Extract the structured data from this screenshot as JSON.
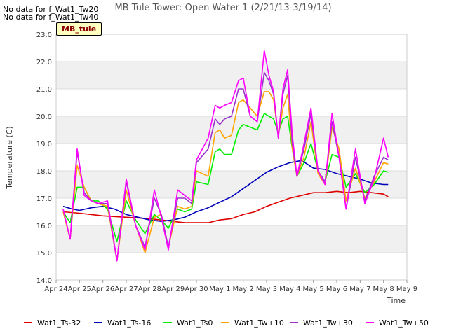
{
  "notices": [
    "No data for f_Wat1_Tw20",
    "No data for f_Wat1_Tw40"
  ],
  "badge": "MB_tule",
  "chart_data": {
    "type": "line",
    "title": "MB Tule Tower: Open Water 1 (2/21/13-3/19/14)",
    "xlabel": "Time",
    "ylabel": "Temperature (C)",
    "ylim": [
      14.0,
      23.0
    ],
    "xlim": [
      0,
      15
    ],
    "yticks": [
      14.0,
      15.0,
      16.0,
      17.0,
      18.0,
      19.0,
      20.0,
      21.0,
      22.0,
      23.0
    ],
    "xticks": [
      "Apr 24",
      "Apr 25",
      "Apr 26",
      "Apr 27",
      "Apr 28",
      "Apr 29",
      "Apr 30",
      "May 1",
      "May 2",
      "May 3",
      "May 4",
      "May 5",
      "May 6",
      "May 7",
      "May 8",
      "May 9"
    ],
    "band_color": "#f0f0f0",
    "legend_position": "bottom",
    "series": [
      {
        "name": "Wat1_Ts-32",
        "color": "#dd0000",
        "x": [
          0.3,
          1.0,
          2.0,
          3.0,
          4.0,
          5.0,
          5.5,
          6.0,
          6.5,
          7.0,
          7.5,
          8.0,
          8.5,
          9.0,
          9.5,
          10.0,
          10.5,
          11.0,
          11.5,
          12.0,
          12.5,
          13.0,
          13.5,
          14.0,
          14.2
        ],
        "y": [
          16.5,
          16.45,
          16.35,
          16.3,
          16.25,
          16.15,
          16.1,
          16.1,
          16.1,
          16.2,
          16.25,
          16.4,
          16.5,
          16.7,
          16.85,
          17.0,
          17.1,
          17.2,
          17.2,
          17.25,
          17.2,
          17.25,
          17.2,
          17.15,
          17.05
        ]
      },
      {
        "name": "Wat1_Ts-16",
        "color": "#0000bb",
        "x": [
          0.3,
          0.7,
          1.0,
          1.5,
          2.0,
          2.5,
          3.0,
          3.5,
          4.0,
          4.5,
          5.0,
          5.5,
          6.0,
          6.5,
          7.0,
          7.5,
          8.0,
          8.5,
          9.0,
          9.5,
          10.0,
          10.5,
          11.0,
          11.5,
          12.0,
          12.5,
          13.0,
          13.5,
          14.0,
          14.2
        ],
        "y": [
          16.7,
          16.6,
          16.55,
          16.65,
          16.7,
          16.6,
          16.4,
          16.3,
          16.2,
          16.15,
          16.2,
          16.3,
          16.5,
          16.65,
          16.85,
          17.05,
          17.35,
          17.65,
          17.95,
          18.15,
          18.3,
          18.38,
          18.1,
          18.05,
          17.9,
          17.8,
          17.7,
          17.55,
          17.5,
          17.5
        ]
      },
      {
        "name": "Wat1_Ts0",
        "color": "#00ee00",
        "x": [
          0.3,
          0.6,
          0.9,
          1.2,
          1.5,
          1.8,
          2.2,
          2.6,
          3.0,
          3.4,
          3.8,
          4.2,
          4.5,
          4.8,
          5.2,
          5.5,
          5.8,
          6.0,
          6.5,
          6.8,
          7.0,
          7.2,
          7.5,
          7.8,
          8.0,
          8.3,
          8.6,
          8.9,
          9.1,
          9.3,
          9.5,
          9.7,
          9.9,
          10.1,
          10.3,
          10.6,
          10.9,
          11.2,
          11.5,
          11.8,
          12.1,
          12.4,
          12.8,
          13.2,
          13.6,
          14.0,
          14.2
        ],
        "y": [
          16.5,
          16.1,
          17.4,
          17.4,
          16.9,
          16.9,
          16.6,
          15.4,
          16.9,
          16.2,
          15.7,
          16.4,
          16.2,
          15.9,
          16.6,
          16.5,
          16.6,
          17.6,
          17.5,
          18.7,
          18.8,
          18.6,
          18.6,
          19.5,
          19.7,
          19.6,
          19.5,
          20.1,
          20.0,
          19.9,
          19.4,
          19.9,
          20.0,
          18.8,
          17.8,
          18.3,
          19.0,
          18.0,
          17.6,
          18.6,
          18.5,
          17.4,
          17.9,
          17.2,
          17.5,
          18.0,
          17.95
        ]
      },
      {
        "name": "Wat1_Tw+10",
        "color": "#ffa500",
        "x": [
          0.3,
          0.6,
          0.9,
          1.2,
          1.5,
          1.8,
          2.2,
          2.6,
          3.0,
          3.4,
          3.8,
          4.2,
          4.5,
          4.8,
          5.2,
          5.5,
          5.8,
          6.0,
          6.5,
          6.8,
          7.0,
          7.2,
          7.5,
          7.8,
          8.0,
          8.3,
          8.6,
          8.9,
          9.1,
          9.3,
          9.5,
          9.7,
          9.9,
          10.1,
          10.3,
          10.6,
          10.9,
          11.2,
          11.5,
          11.8,
          12.1,
          12.4,
          12.8,
          13.2,
          13.6,
          14.0,
          14.2
        ],
        "y": [
          16.5,
          15.5,
          18.2,
          17.4,
          16.9,
          16.8,
          16.7,
          14.7,
          17.3,
          16.0,
          15.0,
          16.3,
          16.4,
          15.2,
          16.7,
          16.6,
          16.7,
          18.0,
          17.8,
          19.4,
          19.5,
          19.2,
          19.3,
          20.5,
          20.6,
          20.3,
          20.0,
          20.9,
          20.9,
          20.6,
          19.3,
          20.3,
          20.8,
          18.8,
          17.8,
          18.5,
          19.8,
          17.9,
          17.5,
          19.6,
          18.8,
          16.9,
          18.1,
          17.0,
          17.6,
          18.3,
          18.25
        ]
      },
      {
        "name": "Wat1_Tw+30",
        "color": "#9933cc",
        "x": [
          0.3,
          0.6,
          0.9,
          1.2,
          1.5,
          1.8,
          2.2,
          2.6,
          3.0,
          3.4,
          3.8,
          4.2,
          4.5,
          4.8,
          5.2,
          5.5,
          5.8,
          6.0,
          6.5,
          6.8,
          7.0,
          7.2,
          7.5,
          7.8,
          8.0,
          8.3,
          8.6,
          8.9,
          9.1,
          9.3,
          9.5,
          9.7,
          9.9,
          10.1,
          10.3,
          10.6,
          10.9,
          11.2,
          11.5,
          11.8,
          12.1,
          12.4,
          12.8,
          13.2,
          13.6,
          14.0,
          14.2
        ],
        "y": [
          16.6,
          15.5,
          18.7,
          17.2,
          16.9,
          16.8,
          16.8,
          14.7,
          17.6,
          16.0,
          15.2,
          17.0,
          16.4,
          15.2,
          17.0,
          17.0,
          16.8,
          18.3,
          18.8,
          19.9,
          19.7,
          19.9,
          20.0,
          21.0,
          21.0,
          20.0,
          19.8,
          21.6,
          21.3,
          20.8,
          19.2,
          20.8,
          21.5,
          19.0,
          17.8,
          18.8,
          20.1,
          18.0,
          17.6,
          19.8,
          18.5,
          16.6,
          18.5,
          16.9,
          17.8,
          18.5,
          18.4
        ]
      },
      {
        "name": "Wat1_Tw+50",
        "color": "#ff00ff",
        "x": [
          0.3,
          0.6,
          0.9,
          1.2,
          1.5,
          1.8,
          2.2,
          2.6,
          3.0,
          3.4,
          3.8,
          4.2,
          4.5,
          4.8,
          5.2,
          5.5,
          5.8,
          6.0,
          6.5,
          6.8,
          7.0,
          7.2,
          7.5,
          7.8,
          8.0,
          8.3,
          8.6,
          8.9,
          9.1,
          9.3,
          9.5,
          9.7,
          9.9,
          10.1,
          10.3,
          10.6,
          10.9,
          11.2,
          11.5,
          11.8,
          12.1,
          12.4,
          12.8,
          13.2,
          13.6,
          14.0,
          14.2
        ],
        "y": [
          16.6,
          15.5,
          18.8,
          17.1,
          16.9,
          16.8,
          16.9,
          14.7,
          17.7,
          16.0,
          15.1,
          17.3,
          16.3,
          15.1,
          17.3,
          17.1,
          16.9,
          18.4,
          19.2,
          20.4,
          20.3,
          20.4,
          20.5,
          21.3,
          21.4,
          20.0,
          19.8,
          22.4,
          21.5,
          20.9,
          19.2,
          21.0,
          21.7,
          19.3,
          17.8,
          19.0,
          20.3,
          18.0,
          17.5,
          20.1,
          18.5,
          16.6,
          18.8,
          16.8,
          17.7,
          19.2,
          18.5
        ]
      }
    ]
  }
}
